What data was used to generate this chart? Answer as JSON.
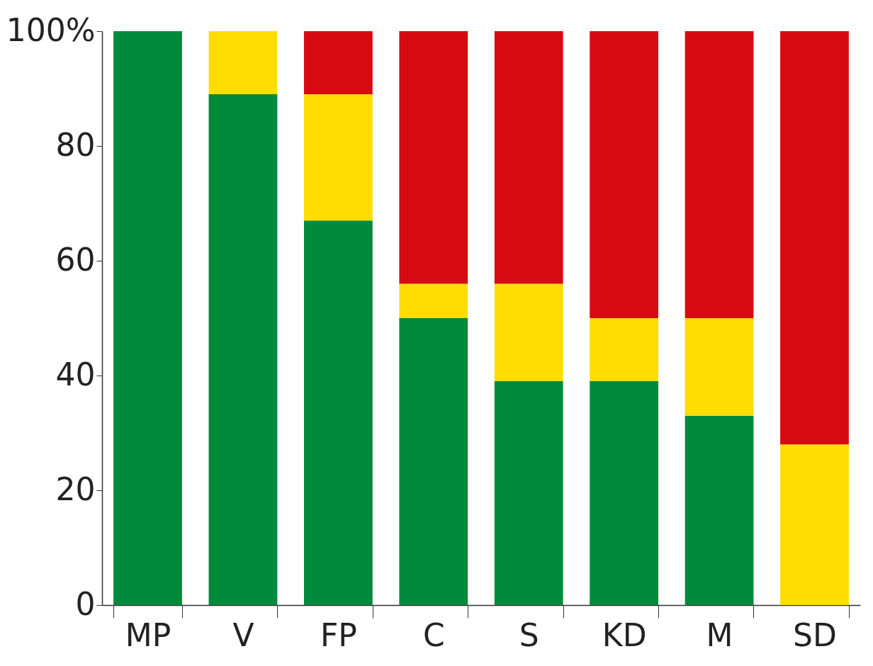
{
  "chart_data": {
    "type": "bar",
    "stacked": true,
    "categories": [
      "MP",
      "V",
      "FP",
      "C",
      "S",
      "KD",
      "M",
      "SD"
    ],
    "series": [
      {
        "color": "#008a3c",
        "values": [
          100,
          89,
          67,
          50,
          39,
          39,
          33,
          0
        ]
      },
      {
        "color": "#ffdd00",
        "values": [
          0,
          11,
          22,
          6,
          17,
          11,
          17,
          28
        ]
      },
      {
        "color": "#d70a11",
        "values": [
          0,
          0,
          11,
          44,
          44,
          50,
          50,
          72
        ]
      }
    ],
    "ylim": [
      0,
      100
    ],
    "yticks": [
      0,
      20,
      40,
      60,
      80,
      {
        "value": 100,
        "label": "100%"
      }
    ]
  }
}
